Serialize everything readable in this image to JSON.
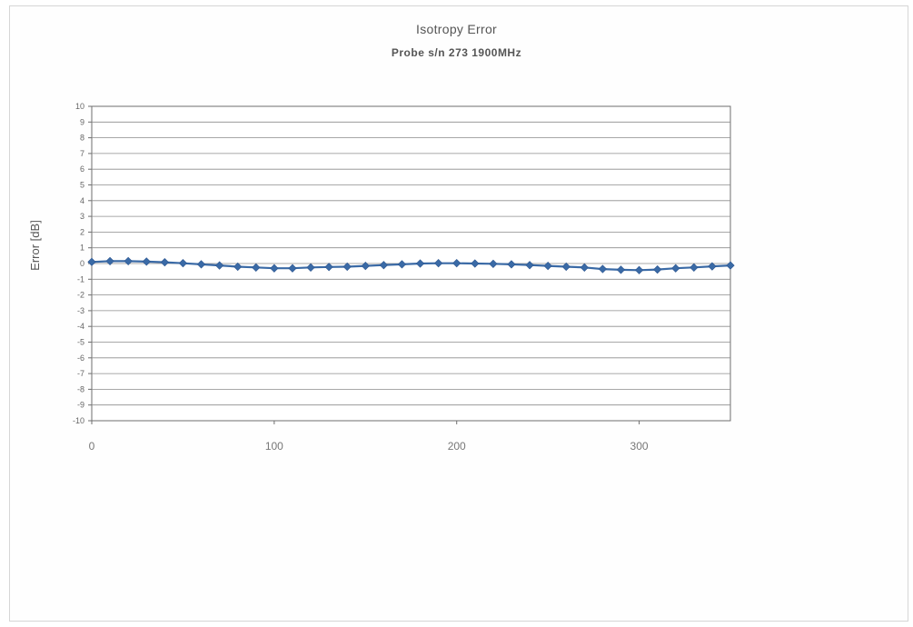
{
  "chart_data": {
    "type": "line",
    "title": "Isotropy Error",
    "subtitle": "Probe s/n 273 1900MHz",
    "ylabel": "Error [dB]",
    "xlabel": "",
    "xlim": [
      0,
      350
    ],
    "ylim": [
      -10,
      10
    ],
    "xticks": [
      0,
      100,
      200,
      300
    ],
    "yticks": [
      10,
      9,
      8,
      7,
      6,
      5,
      4,
      3,
      2,
      1,
      0,
      -1,
      -2,
      -3,
      -4,
      -5,
      -6,
      -7,
      -8,
      -9,
      -10
    ],
    "grid": "horizontal",
    "legend": "none",
    "series": [
      {
        "color": "#3a6aa6",
        "marker": "diamond",
        "x": [
          0,
          10,
          20,
          30,
          40,
          50,
          60,
          70,
          80,
          90,
          100,
          110,
          120,
          130,
          140,
          150,
          160,
          170,
          180,
          190,
          200,
          210,
          220,
          230,
          240,
          250,
          260,
          270,
          280,
          290,
          300,
          310,
          320,
          330,
          340,
          350
        ],
        "y": [
          0.1,
          0.15,
          0.15,
          0.12,
          0.08,
          0.02,
          -0.05,
          -0.12,
          -0.2,
          -0.25,
          -0.3,
          -0.3,
          -0.25,
          -0.22,
          -0.2,
          -0.15,
          -0.1,
          -0.05,
          0.0,
          0.02,
          0.02,
          0.0,
          -0.02,
          -0.05,
          -0.1,
          -0.15,
          -0.2,
          -0.25,
          -0.35,
          -0.4,
          -0.42,
          -0.38,
          -0.3,
          -0.25,
          -0.18,
          -0.12
        ]
      }
    ]
  }
}
